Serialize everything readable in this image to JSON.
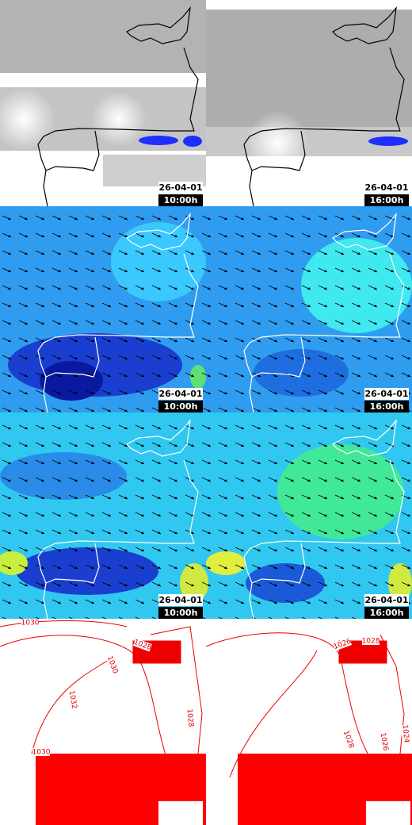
{
  "panels": [
    {
      "date": "26-04-01",
      "time": "10:00h"
    },
    {
      "date": "26-04-01",
      "time": "16:00h"
    },
    {
      "date": "26-04-01",
      "time": "10:00h"
    },
    {
      "date": "26-04-01",
      "time": "16:00h"
    },
    {
      "date": "26-04-01",
      "time": "10:00h"
    },
    {
      "date": "26-04-01",
      "time": "16:00h"
    }
  ],
  "isobars": {
    "left": [
      "1030",
      "1028",
      "1030",
      "1032",
      "1028",
      "1030"
    ],
    "right": [
      "1028",
      "1026",
      "1028",
      "1026",
      "1024"
    ]
  }
}
